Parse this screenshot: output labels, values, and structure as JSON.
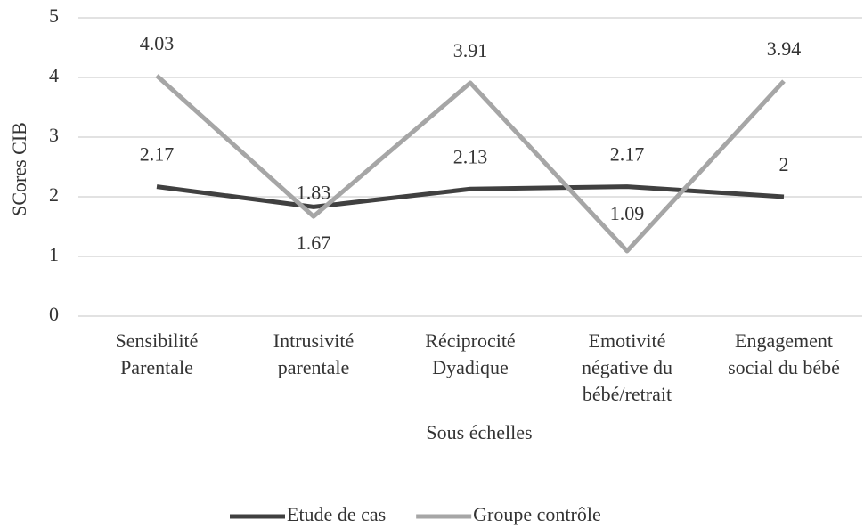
{
  "chart_data": {
    "type": "line",
    "categories": [
      [
        "Sensibilité",
        "Parentale"
      ],
      [
        "Intrusivité",
        "parentale"
      ],
      [
        "Réciprocité",
        "Dyadique"
      ],
      [
        "Emotivité",
        "négative du",
        "bébé/retrait"
      ],
      [
        "Engagement",
        "social du bébé"
      ]
    ],
    "series": [
      {
        "name": "Etude de cas",
        "color": "#404040",
        "values": [
          2.17,
          1.83,
          2.13,
          2.17,
          2
        ]
      },
      {
        "name": "Groupe contrôle",
        "color": "#a6a6a6",
        "values": [
          4.03,
          1.67,
          3.91,
          1.09,
          3.94
        ]
      }
    ],
    "ylim": [
      0,
      5
    ],
    "yticks": [
      0,
      1,
      2,
      3,
      4,
      5
    ],
    "grid": true,
    "xlabel": "Sous échelles",
    "ylabel": "SCores CIB",
    "legend": "bottom"
  }
}
